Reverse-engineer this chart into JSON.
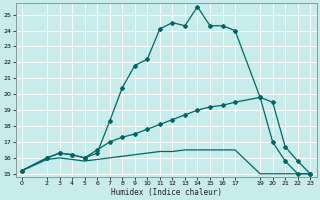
{
  "xlabel": "Humidex (Indice chaleur)",
  "bg_color": "#c8ecec",
  "grid_color": "#ffffff",
  "line_color": "#006666",
  "xlim": [
    -0.5,
    23.5
  ],
  "ylim": [
    14.8,
    25.7
  ],
  "yticks": [
    15,
    16,
    17,
    18,
    19,
    20,
    21,
    22,
    23,
    24,
    25
  ],
  "xticks": [
    0,
    2,
    3,
    4,
    5,
    6,
    7,
    8,
    9,
    10,
    11,
    12,
    13,
    14,
    15,
    16,
    17,
    19,
    20,
    21,
    22,
    23
  ],
  "curve1_x": [
    0,
    2,
    3,
    4,
    5,
    6,
    7,
    8,
    9,
    10,
    11,
    12,
    13,
    14,
    15,
    16,
    17,
    19,
    20,
    21,
    22,
    23
  ],
  "curve1_y": [
    15.2,
    16.0,
    16.3,
    16.2,
    16.0,
    16.3,
    18.3,
    20.4,
    21.8,
    22.2,
    24.1,
    24.5,
    24.3,
    25.5,
    24.3,
    24.3,
    24.0,
    19.8,
    17.0,
    15.8,
    15.0,
    15.0
  ],
  "curve2_x": [
    0,
    2,
    3,
    4,
    5,
    6,
    7,
    8,
    9,
    10,
    11,
    12,
    13,
    14,
    15,
    16,
    17,
    19,
    20,
    21,
    22,
    23
  ],
  "curve2_y": [
    15.2,
    16.0,
    16.3,
    16.2,
    16.0,
    16.5,
    17.0,
    17.3,
    17.5,
    17.8,
    18.1,
    18.4,
    18.7,
    19.0,
    19.2,
    19.3,
    19.5,
    19.8,
    19.5,
    16.7,
    15.8,
    15.0
  ],
  "curve3_x": [
    0,
    2,
    3,
    4,
    5,
    6,
    7,
    8,
    9,
    10,
    11,
    12,
    13,
    14,
    15,
    16,
    17,
    19,
    20,
    21,
    22,
    23
  ],
  "curve3_y": [
    15.2,
    15.9,
    16.0,
    15.9,
    15.8,
    15.9,
    16.0,
    16.1,
    16.2,
    16.3,
    16.4,
    16.4,
    16.5,
    16.5,
    16.5,
    16.5,
    16.5,
    15.0,
    15.0,
    15.0,
    15.0,
    15.0
  ]
}
